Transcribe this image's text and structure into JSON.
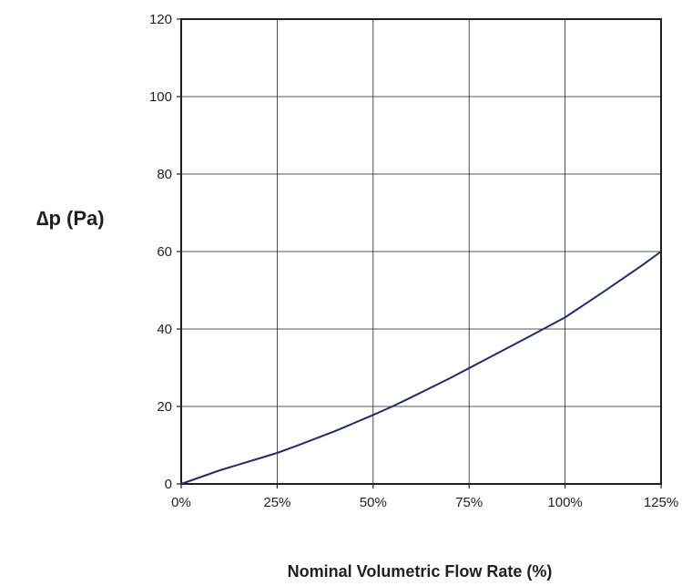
{
  "chart_data": {
    "type": "line",
    "title": "",
    "xlabel": "Nominal Volumetric Flow Rate (%)",
    "ylabel": "∆p (Pa)",
    "x_tick_labels": [
      "0%",
      "25%",
      "50%",
      "75%",
      "100%",
      "125%"
    ],
    "y_tick_labels": [
      "0",
      "20",
      "40",
      "60",
      "80",
      "100",
      "120"
    ],
    "xlim": [
      0,
      125
    ],
    "ylim": [
      0,
      120
    ],
    "grid": true,
    "legend": "none",
    "series": [
      {
        "color": "#1f2d6b",
        "x": [
          0,
          10,
          20,
          25,
          30,
          40,
          50,
          55,
          60,
          70,
          75,
          80,
          90,
          100,
          110,
          120,
          125
        ],
        "y": [
          0,
          3.5,
          6.5,
          8,
          9.8,
          13.6,
          17.8,
          20,
          22.4,
          27.3,
          29.9,
          32.5,
          37.7,
          43,
          49.6,
          56.4,
          60
        ]
      }
    ]
  }
}
